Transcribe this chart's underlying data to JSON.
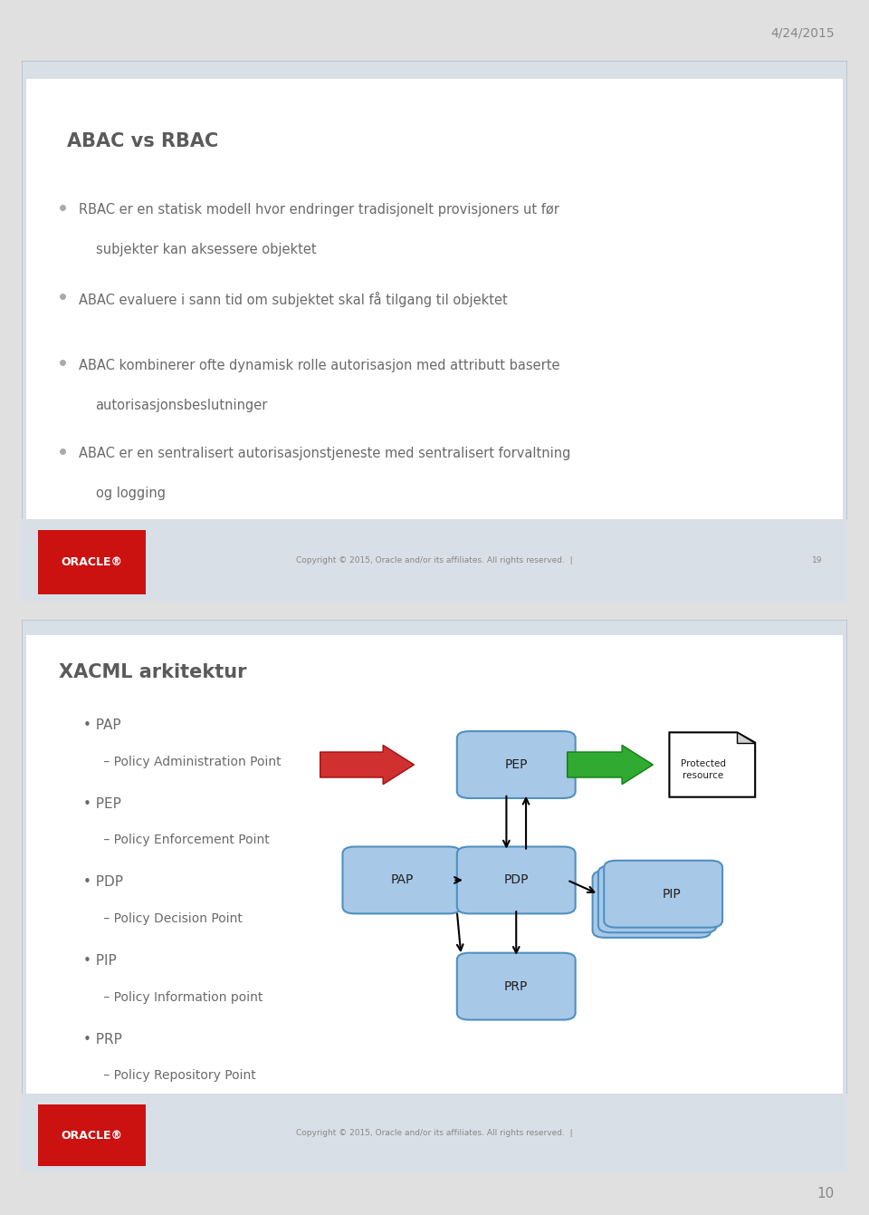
{
  "slide1": {
    "title": "ABAC vs RBAC",
    "bullet1_line1": "RBAC er en statisk modell hvor endringer tradisjonelt provisjoners ut før",
    "bullet1_line2": "subjekter kan aksessere objektet",
    "bullet2": "ABAC evaluere i sann tid om subjektet skal få tilgang til objektet",
    "bullet3_line1": "ABAC kombinerer ofte dynamisk rolle autorisasjon med attributt baserte",
    "bullet3_line2": "autorisasjonsbeslutninger",
    "bullet4_line1": "ABAC er en sentralisert autorisasjonstjeneste med sentralisert forvaltning",
    "bullet4_line2": "og logging",
    "footer": "Copyright © 2015, Oracle and/or its affiliates. All rights reserved.  |",
    "page_num": "19",
    "outer_bg": "#d8dfe6",
    "inner_bg": "#ffffff",
    "footer_bg": "#d8dfe6",
    "title_color": "#5a5a5a",
    "bullet_color": "#6a6a6a",
    "oracle_red": "#cc1111"
  },
  "slide2": {
    "title": "XACML arkitektur",
    "footer": "Copyright © 2015, Oracle and/or its affiliates. All rights reserved.  |",
    "outer_bg": "#d8dfe6",
    "inner_bg": "#ffffff",
    "footer_bg": "#d8dfe6",
    "title_color": "#5a5a5a",
    "bullet_color": "#6a6a6a",
    "oracle_red": "#cc1111",
    "box_fill": "#a8c8e8",
    "box_edge": "#5090c0"
  },
  "date_text": "4/24/2015",
  "page_number": "10",
  "fig_bg": "#e0e0e0"
}
